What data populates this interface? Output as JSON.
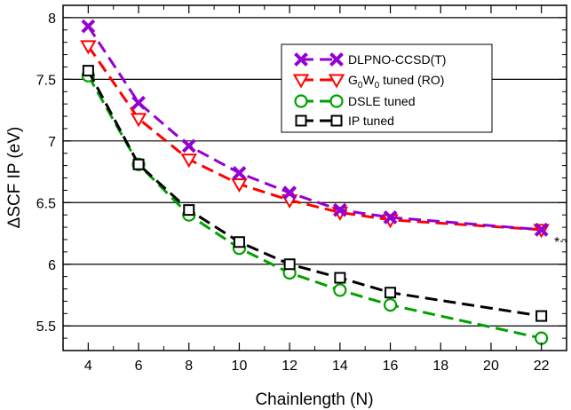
{
  "chart_data": {
    "type": "line",
    "title": "",
    "xlabel": "Chainlength (N)",
    "ylabel": "ΔSCF IP (eV)",
    "xlim": [
      3,
      23
    ],
    "ylim": [
      5.3,
      8.1
    ],
    "xticks": [
      4,
      6,
      8,
      10,
      12,
      14,
      16,
      18,
      20,
      22
    ],
    "yticks": [
      5.5,
      6,
      6.5,
      7,
      7.5,
      8
    ],
    "ytick_labels": [
      "5.5",
      "6",
      "6.5",
      "7",
      "7.5",
      "8"
    ],
    "grid": "horizontal",
    "legend_position": "top-right",
    "annotation": "*",
    "x": [
      4,
      6,
      8,
      10,
      12,
      14,
      16,
      22
    ],
    "series": [
      {
        "name": "DLPNO-CCSD(T)",
        "marker": "x",
        "color": "#9400D3",
        "values": [
          7.93,
          7.31,
          6.96,
          6.74,
          6.58,
          6.44,
          6.38,
          6.28
        ]
      },
      {
        "name": "G0W0 tuned (RO)",
        "name_main": "G",
        "name_sub1": "0",
        "name_mid": "W",
        "name_sub2": "0",
        "name_rest": " tuned (RO)",
        "marker": "triangle-down",
        "color": "#FF0000",
        "values": [
          7.77,
          7.18,
          6.85,
          6.65,
          6.52,
          6.42,
          6.36,
          6.28
        ]
      },
      {
        "name": "DSLE tuned",
        "marker": "circle",
        "color": "#00A000",
        "values": [
          7.53,
          6.81,
          6.4,
          6.13,
          5.93,
          5.79,
          5.67,
          5.4
        ]
      },
      {
        "name": "IP tuned",
        "marker": "square",
        "color": "#000000",
        "values": [
          7.57,
          6.81,
          6.44,
          6.18,
          6.0,
          5.89,
          5.77,
          5.58
        ]
      }
    ]
  }
}
